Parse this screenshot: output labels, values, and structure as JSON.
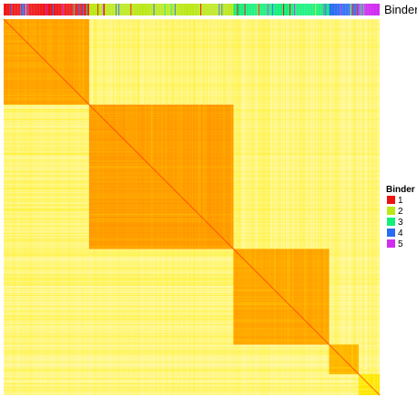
{
  "chart_data": {
    "type": "heatmap",
    "title": "",
    "xlabel": "",
    "ylabel": "",
    "annotation_label": "Binder",
    "legend": {
      "title": "Binder",
      "position": "right",
      "entries": [
        {
          "label": "1",
          "color": "#ee1111"
        },
        {
          "label": "2",
          "color": "#bbe819"
        },
        {
          "label": "3",
          "color": "#12f07a"
        },
        {
          "label": "4",
          "color": "#2a6cf2"
        },
        {
          "label": "5",
          "color": "#d12cf2"
        }
      ]
    },
    "clusters": [
      {
        "binder": "1",
        "size": 93,
        "within": 0.85
      },
      {
        "binder": "2",
        "size": 157,
        "within": 0.88
      },
      {
        "binder": "3",
        "size": 104,
        "within": 0.84
      },
      {
        "binder": "4",
        "size": 32,
        "within": 0.78
      },
      {
        "binder": "5",
        "size": 23,
        "within": 0.55
      }
    ],
    "annotation_sequence": [
      {
        "binder": "1",
        "count": 93
      },
      {
        "binder": "2",
        "count": 157
      },
      {
        "binder": "3",
        "count": 104
      },
      {
        "binder": "4",
        "count": 32
      },
      {
        "binder": "5",
        "count": 23
      }
    ],
    "between_cluster_value": 0.28,
    "color_scale": {
      "low": "#ffffff",
      "mid": "#ffee00",
      "high": "#ff7a00"
    },
    "diagonal_color": "#ff3300"
  }
}
